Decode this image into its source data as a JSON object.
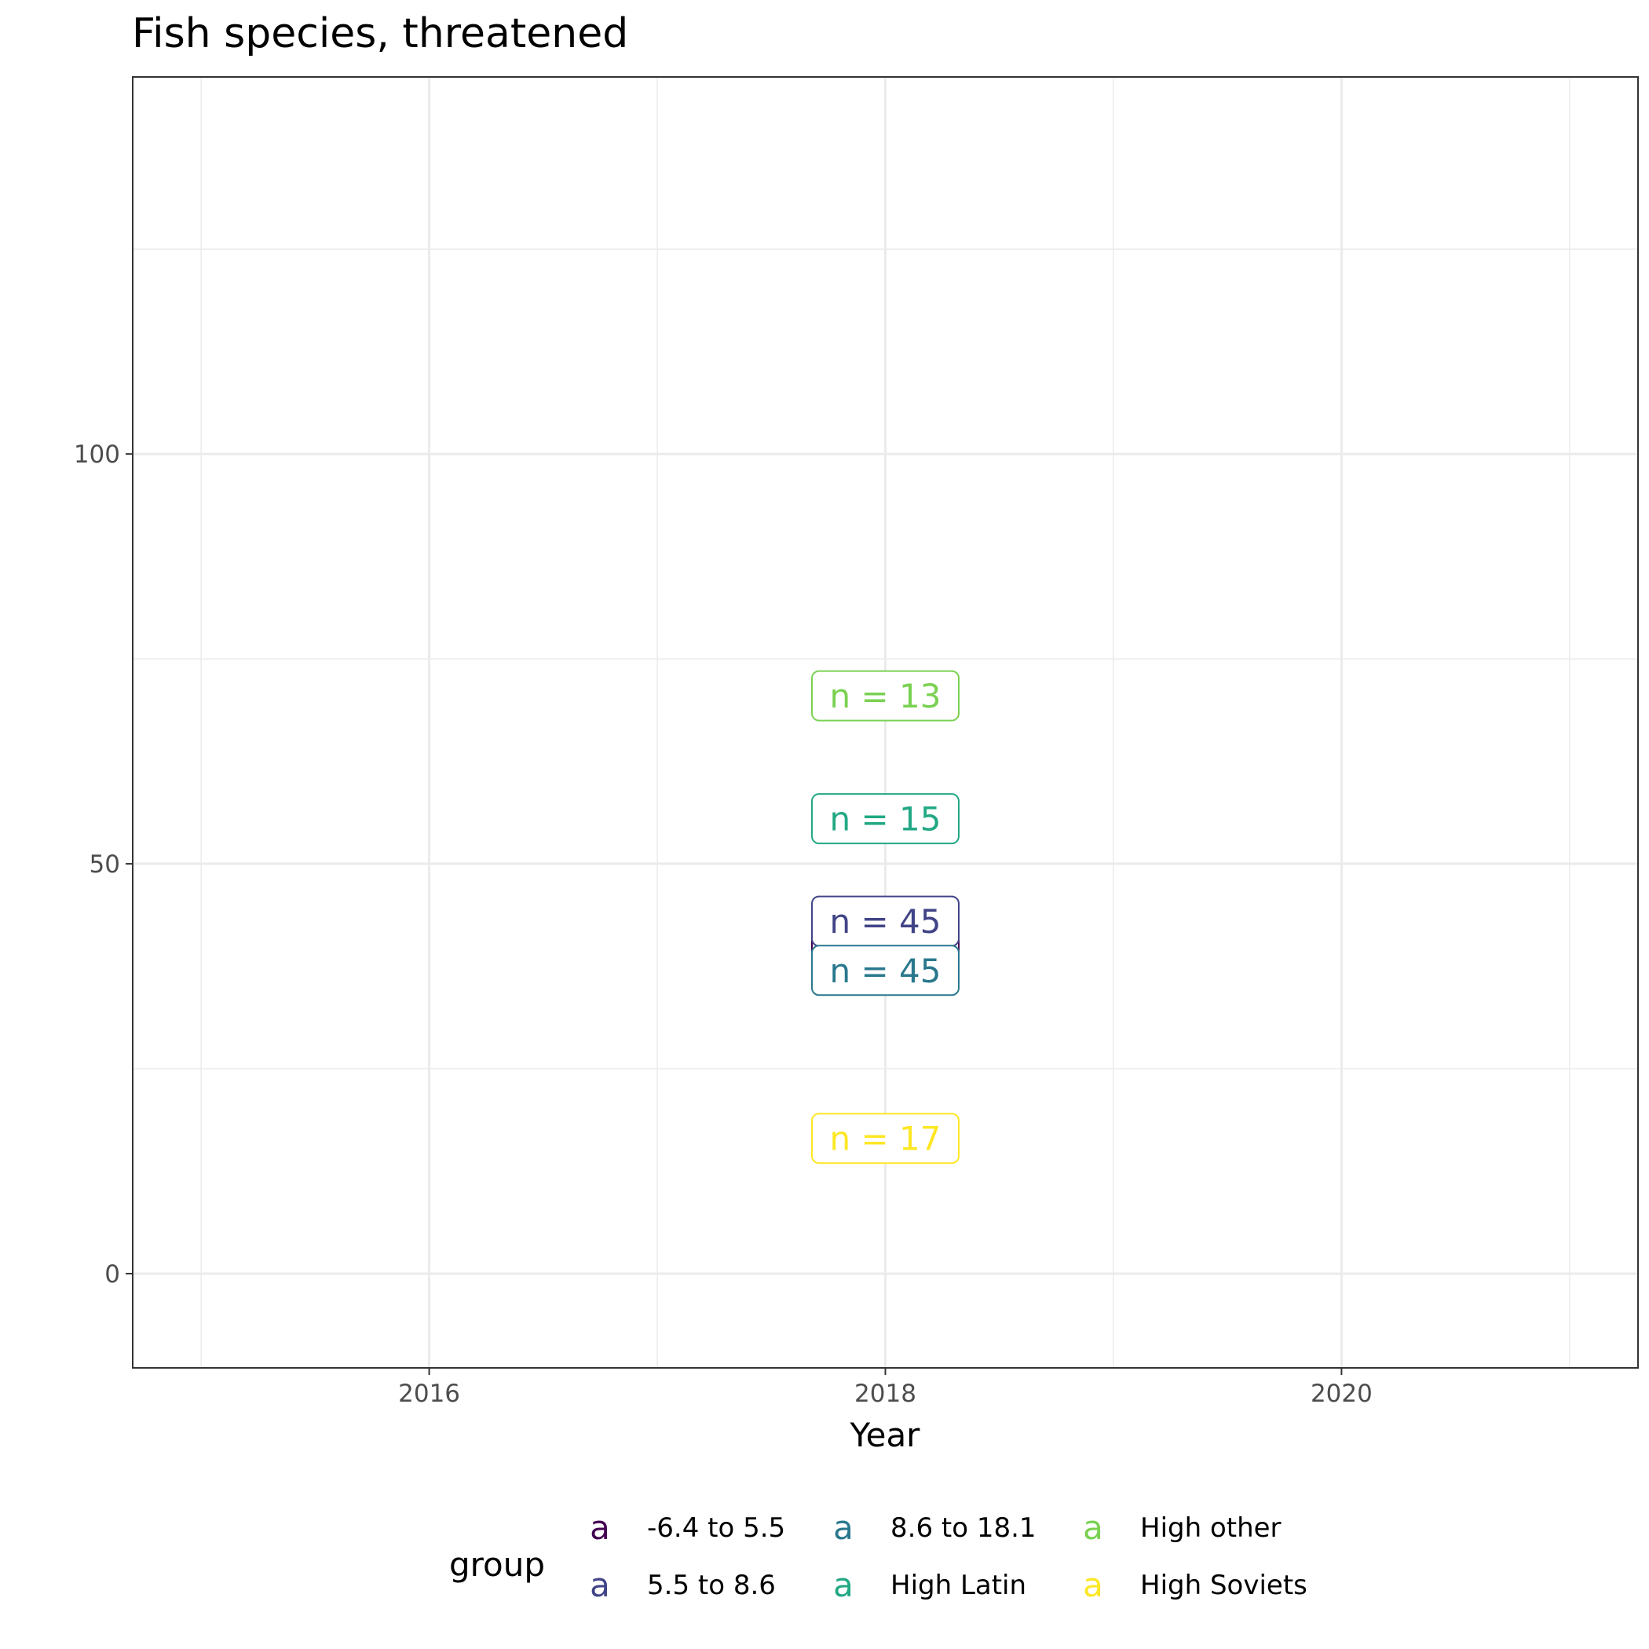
{
  "chart_data": {
    "type": "scatter",
    "title": "Fish species, threatened",
    "xlabel": "Year",
    "ylabel": "",
    "xlim": [
      2014.7,
      2021.3
    ],
    "ylim": [
      -11.5,
      146
    ],
    "x_ticks": [
      2016,
      2018,
      2020
    ],
    "x_minor_ticks": [
      2015,
      2017,
      2019,
      2021
    ],
    "y_ticks": [
      0,
      50,
      100
    ],
    "y_minor_ticks": [
      25,
      75,
      125
    ],
    "grid": true,
    "legend": {
      "title": "group",
      "position": "bottom",
      "key_glyph": "a"
    },
    "series": [
      {
        "name": "-6.4 to 5.5",
        "color": "#440154",
        "points": [
          {
            "x": 2018,
            "y": 40,
            "label": "n = 45"
          }
        ]
      },
      {
        "name": "5.5 to 8.6",
        "color": "#414487",
        "points": [
          {
            "x": 2018,
            "y": 43,
            "label": "n = 45"
          }
        ]
      },
      {
        "name": "8.6 to 18.1",
        "color": "#2A788E",
        "points": [
          {
            "x": 2018,
            "y": 37,
            "label": "n = 45"
          }
        ]
      },
      {
        "name": "High Latin",
        "color": "#22A884",
        "points": [
          {
            "x": 2018,
            "y": 55.5,
            "label": "n = 15"
          }
        ]
      },
      {
        "name": "High other",
        "color": "#7AD151",
        "points": [
          {
            "x": 2018,
            "y": 70.5,
            "label": "n = 13"
          }
        ]
      },
      {
        "name": "High Soviets",
        "color": "#FDE725",
        "points": [
          {
            "x": 2018,
            "y": 16.5,
            "label": "n = 17"
          }
        ]
      }
    ]
  }
}
